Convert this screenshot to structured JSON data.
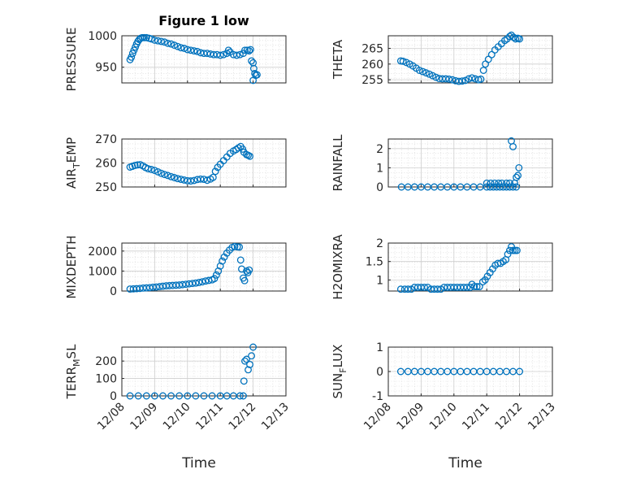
{
  "figure": {
    "title": "Figure 1 low"
  },
  "colors": {
    "marker": "#0072BD"
  },
  "chart_data": [
    {
      "type": "scatter",
      "id": "pressure",
      "title": "Figure 1 low",
      "xlabel": "",
      "ylabel": "PRESSURE",
      "ylim": [
        925,
        1000
      ],
      "yticks": [
        950,
        1000
      ],
      "yticklabels": [
        "950",
        "1000"
      ],
      "xlim": [
        0,
        5
      ],
      "points": [
        [
          0.25,
          962
        ],
        [
          0.29,
          966
        ],
        [
          0.33,
          972
        ],
        [
          0.37,
          977
        ],
        [
          0.41,
          982
        ],
        [
          0.45,
          987
        ],
        [
          0.49,
          991
        ],
        [
          0.53,
          994
        ],
        [
          0.57,
          996
        ],
        [
          0.62,
          997
        ],
        [
          0.68,
          997
        ],
        [
          0.75,
          997
        ],
        [
          0.83,
          996
        ],
        [
          0.9,
          995
        ],
        [
          1.0,
          993
        ],
        [
          1.1,
          992
        ],
        [
          1.2,
          991
        ],
        [
          1.3,
          990
        ],
        [
          1.4,
          988
        ],
        [
          1.5,
          987
        ],
        [
          1.6,
          985
        ],
        [
          1.7,
          983
        ],
        [
          1.8,
          981
        ],
        [
          1.9,
          980
        ],
        [
          2.0,
          978
        ],
        [
          2.1,
          977
        ],
        [
          2.2,
          976
        ],
        [
          2.3,
          975
        ],
        [
          2.4,
          973
        ],
        [
          2.5,
          972
        ],
        [
          2.6,
          972
        ],
        [
          2.7,
          971
        ],
        [
          2.8,
          970
        ],
        [
          2.9,
          970
        ],
        [
          3.0,
          969
        ],
        [
          3.1,
          970
        ],
        [
          3.2,
          972
        ],
        [
          3.25,
          977
        ],
        [
          3.3,
          974
        ],
        [
          3.4,
          970
        ],
        [
          3.5,
          969
        ],
        [
          3.6,
          970
        ],
        [
          3.7,
          972
        ],
        [
          3.75,
          977
        ],
        [
          3.82,
          977
        ],
        [
          3.88,
          976
        ],
        [
          3.92,
          978
        ],
        [
          3.95,
          960
        ],
        [
          4.0,
          957
        ],
        [
          4.02,
          948
        ],
        [
          4.05,
          940
        ],
        [
          4.0,
          929
        ],
        [
          4.08,
          937
        ],
        [
          4.12,
          938
        ]
      ]
    },
    {
      "type": "scatter",
      "id": "theta",
      "xlabel": "",
      "ylabel": "THETA",
      "ylim": [
        254,
        269
      ],
      "yticks": [
        255,
        260,
        265
      ],
      "yticklabels": [
        "255",
        "260",
        "265"
      ],
      "xlim": [
        0,
        5
      ],
      "points": [
        [
          0.38,
          261
        ],
        [
          0.45,
          260.9
        ],
        [
          0.55,
          260.5
        ],
        [
          0.65,
          260
        ],
        [
          0.75,
          259.4
        ],
        [
          0.85,
          258.7
        ],
        [
          0.95,
          258
        ],
        [
          1.05,
          257.6
        ],
        [
          1.15,
          257.2
        ],
        [
          1.25,
          256.8
        ],
        [
          1.35,
          256.3
        ],
        [
          1.45,
          255.8
        ],
        [
          1.55,
          255.4
        ],
        [
          1.65,
          255.3
        ],
        [
          1.75,
          255.3
        ],
        [
          1.85,
          255.2
        ],
        [
          1.95,
          255.0
        ],
        [
          2.05,
          254.7
        ],
        [
          2.15,
          254.5
        ],
        [
          2.25,
          254.6
        ],
        [
          2.35,
          254.8
        ],
        [
          2.45,
          255.3
        ],
        [
          2.55,
          255.6
        ],
        [
          2.65,
          255.3
        ],
        [
          2.75,
          255.0
        ],
        [
          2.82,
          255.2
        ],
        [
          2.9,
          258
        ],
        [
          2.96,
          260
        ],
        [
          3.05,
          261.5
        ],
        [
          3.15,
          263
        ],
        [
          3.25,
          264.5
        ],
        [
          3.35,
          265.5
        ],
        [
          3.45,
          266.5
        ],
        [
          3.55,
          267.5
        ],
        [
          3.62,
          268
        ],
        [
          3.7,
          268.8
        ],
        [
          3.75,
          269.2
        ],
        [
          3.82,
          268.5
        ],
        [
          3.88,
          268
        ],
        [
          3.95,
          268.2
        ],
        [
          4.0,
          268
        ]
      ]
    },
    {
      "type": "scatter",
      "id": "air_temp",
      "xlabel": "",
      "ylabel": "AIR_TEMP",
      "ylabel_base": "AIR",
      "ylabel_sub": "T",
      "ylabel_rest": "EMP",
      "ylim": [
        250,
        270
      ],
      "yticks": [
        250,
        260,
        270
      ],
      "yticklabels": [
        "250",
        "260",
        "270"
      ],
      "xlim": [
        0,
        5
      ],
      "points": [
        [
          0.25,
          258.3
        ],
        [
          0.32,
          258.6
        ],
        [
          0.4,
          259
        ],
        [
          0.48,
          259.2
        ],
        [
          0.56,
          259.3
        ],
        [
          0.64,
          258.8
        ],
        [
          0.72,
          258.1
        ],
        [
          0.8,
          257.6
        ],
        [
          0.9,
          257.3
        ],
        [
          1.0,
          256.9
        ],
        [
          1.1,
          256.3
        ],
        [
          1.2,
          255.7
        ],
        [
          1.3,
          255.2
        ],
        [
          1.4,
          254.8
        ],
        [
          1.5,
          254.3
        ],
        [
          1.6,
          253.9
        ],
        [
          1.7,
          253.5
        ],
        [
          1.8,
          253.2
        ],
        [
          1.9,
          252.9
        ],
        [
          2.0,
          252.6
        ],
        [
          2.1,
          252.5
        ],
        [
          2.2,
          252.7
        ],
        [
          2.3,
          253.1
        ],
        [
          2.4,
          253.3
        ],
        [
          2.5,
          253.2
        ],
        [
          2.6,
          252.8
        ],
        [
          2.7,
          253.3
        ],
        [
          2.78,
          254
        ],
        [
          2.85,
          256.5
        ],
        [
          2.92,
          258.2
        ],
        [
          3.0,
          259.5
        ],
        [
          3.1,
          261
        ],
        [
          3.2,
          262.5
        ],
        [
          3.3,
          264
        ],
        [
          3.4,
          265
        ],
        [
          3.48,
          265.6
        ],
        [
          3.55,
          266.3
        ],
        [
          3.62,
          266.9
        ],
        [
          3.68,
          265.8
        ],
        [
          3.72,
          264.5
        ],
        [
          3.8,
          263.5
        ],
        [
          3.85,
          263.2
        ],
        [
          3.9,
          262.8
        ]
      ]
    },
    {
      "type": "scatter",
      "id": "rainfall",
      "xlabel": "",
      "ylabel": "RAINFALL",
      "ylim": [
        0,
        2.5
      ],
      "yticks": [
        0,
        1,
        2
      ],
      "yticklabels": [
        "0",
        "1",
        "2"
      ],
      "xlim": [
        0,
        5
      ],
      "points": [
        [
          0.4,
          0
        ],
        [
          0.6,
          0
        ],
        [
          0.8,
          0
        ],
        [
          1.0,
          0
        ],
        [
          1.2,
          0
        ],
        [
          1.4,
          0
        ],
        [
          1.6,
          0
        ],
        [
          1.8,
          0
        ],
        [
          2.0,
          0
        ],
        [
          2.2,
          0
        ],
        [
          2.4,
          0
        ],
        [
          2.6,
          0
        ],
        [
          2.8,
          0
        ],
        [
          3.0,
          0
        ],
        [
          3.1,
          0
        ],
        [
          3.2,
          0
        ],
        [
          3.3,
          0
        ],
        [
          3.4,
          0
        ],
        [
          3.5,
          0
        ],
        [
          3.6,
          0
        ],
        [
          3.7,
          0
        ],
        [
          3.8,
          0
        ],
        [
          3.9,
          0
        ],
        [
          3.0,
          0.2
        ],
        [
          3.12,
          0.2
        ],
        [
          3.24,
          0.2
        ],
        [
          3.36,
          0.2
        ],
        [
          3.46,
          0.2
        ],
        [
          3.6,
          0.2
        ],
        [
          3.7,
          0.2
        ],
        [
          3.75,
          2.4
        ],
        [
          3.8,
          2.1
        ],
        [
          3.85,
          0.2
        ],
        [
          3.9,
          0.5
        ],
        [
          3.95,
          0.6
        ],
        [
          3.98,
          1.0
        ]
      ]
    },
    {
      "type": "scatter",
      "id": "mixdepth",
      "xlabel": "",
      "ylabel": "MIXDEPTH",
      "ylim": [
        0,
        2400
      ],
      "yticks": [
        0,
        1000,
        2000
      ],
      "yticklabels": [
        "0",
        "1000",
        "2000"
      ],
      "xlim": [
        0,
        5
      ],
      "points": [
        [
          0.25,
          100
        ],
        [
          0.35,
          110
        ],
        [
          0.45,
          120
        ],
        [
          0.55,
          130
        ],
        [
          0.65,
          150
        ],
        [
          0.75,
          160
        ],
        [
          0.85,
          170
        ],
        [
          0.95,
          190
        ],
        [
          1.05,
          200
        ],
        [
          1.15,
          220
        ],
        [
          1.25,
          240
        ],
        [
          1.35,
          260
        ],
        [
          1.45,
          270
        ],
        [
          1.55,
          280
        ],
        [
          1.65,
          290
        ],
        [
          1.75,
          300
        ],
        [
          1.85,
          320
        ],
        [
          1.95,
          340
        ],
        [
          2.05,
          360
        ],
        [
          2.15,
          380
        ],
        [
          2.25,
          400
        ],
        [
          2.35,
          430
        ],
        [
          2.45,
          460
        ],
        [
          2.55,
          500
        ],
        [
          2.65,
          530
        ],
        [
          2.75,
          560
        ],
        [
          2.82,
          620
        ],
        [
          2.88,
          800
        ],
        [
          2.94,
          1000
        ],
        [
          3.0,
          1250
        ],
        [
          3.06,
          1500
        ],
        [
          3.12,
          1700
        ],
        [
          3.2,
          1900
        ],
        [
          3.28,
          2050
        ],
        [
          3.36,
          2180
        ],
        [
          3.44,
          2230
        ],
        [
          3.52,
          2210
        ],
        [
          3.58,
          2200
        ],
        [
          3.62,
          1550
        ],
        [
          3.65,
          1100
        ],
        [
          3.7,
          650
        ],
        [
          3.74,
          520
        ],
        [
          3.8,
          1000
        ],
        [
          3.84,
          920
        ],
        [
          3.88,
          1050
        ]
      ]
    },
    {
      "type": "scatter",
      "id": "h2omixra",
      "xlabel": "",
      "ylabel": "H2OMIXRA",
      "ylim": [
        0.7,
        2.0
      ],
      "yticks": [
        1,
        1.5,
        2
      ],
      "yticklabels": [
        "1",
        "1.5",
        "2"
      ],
      "xlim": [
        0,
        5
      ],
      "points": [
        [
          0.38,
          0.75
        ],
        [
          0.5,
          0.75
        ],
        [
          0.6,
          0.75
        ],
        [
          0.7,
          0.75
        ],
        [
          0.8,
          0.8
        ],
        [
          0.9,
          0.8
        ],
        [
          1.0,
          0.8
        ],
        [
          1.1,
          0.8
        ],
        [
          1.2,
          0.8
        ],
        [
          1.3,
          0.75
        ],
        [
          1.4,
          0.75
        ],
        [
          1.5,
          0.75
        ],
        [
          1.6,
          0.75
        ],
        [
          1.7,
          0.8
        ],
        [
          1.8,
          0.8
        ],
        [
          1.9,
          0.8
        ],
        [
          2.0,
          0.8
        ],
        [
          2.1,
          0.8
        ],
        [
          2.2,
          0.8
        ],
        [
          2.3,
          0.8
        ],
        [
          2.4,
          0.8
        ],
        [
          2.5,
          0.8
        ],
        [
          2.55,
          0.88
        ],
        [
          2.62,
          0.82
        ],
        [
          2.7,
          0.82
        ],
        [
          2.78,
          0.82
        ],
        [
          2.88,
          0.95
        ],
        [
          2.95,
          1.0
        ],
        [
          3.02,
          1.1
        ],
        [
          3.1,
          1.2
        ],
        [
          3.18,
          1.3
        ],
        [
          3.26,
          1.4
        ],
        [
          3.34,
          1.45
        ],
        [
          3.42,
          1.45
        ],
        [
          3.5,
          1.5
        ],
        [
          3.58,
          1.55
        ],
        [
          3.64,
          1.7
        ],
        [
          3.7,
          1.8
        ],
        [
          3.75,
          1.9
        ],
        [
          3.8,
          1.8
        ],
        [
          3.86,
          1.8
        ],
        [
          3.92,
          1.8
        ]
      ]
    },
    {
      "type": "scatter",
      "id": "terr_msl",
      "xlabel": "Time",
      "ylabel": "TERR_MSL",
      "ylabel_base": "TERR",
      "ylabel_sub": "M",
      "ylabel_rest": "SL",
      "ylim": [
        0,
        280
      ],
      "yticks": [
        0,
        100,
        200
      ],
      "yticklabels": [
        "0",
        "100",
        "200"
      ],
      "xlim": [
        0,
        5
      ],
      "xticks": [
        0,
        1,
        2,
        3,
        4,
        5
      ],
      "xticklabels": [
        "12/08",
        "12/09",
        "12/10",
        "12/11",
        "12/12",
        "12/13"
      ],
      "points": [
        [
          0.25,
          0
        ],
        [
          0.5,
          0
        ],
        [
          0.75,
          0
        ],
        [
          1.0,
          0
        ],
        [
          1.25,
          0
        ],
        [
          1.5,
          0
        ],
        [
          1.75,
          0
        ],
        [
          2.0,
          0
        ],
        [
          2.25,
          0
        ],
        [
          2.5,
          0
        ],
        [
          2.75,
          0
        ],
        [
          3.0,
          0
        ],
        [
          3.2,
          0
        ],
        [
          3.4,
          0
        ],
        [
          3.6,
          0
        ],
        [
          3.7,
          0
        ],
        [
          3.72,
          85
        ],
        [
          3.75,
          200
        ],
        [
          3.8,
          210
        ],
        [
          3.85,
          150
        ],
        [
          3.9,
          180
        ],
        [
          3.95,
          230
        ],
        [
          4.0,
          280
        ]
      ]
    },
    {
      "type": "scatter",
      "id": "sun_flux",
      "xlabel": "Time",
      "ylabel": "SUN_FLUX",
      "ylabel_base": "SUN",
      "ylabel_sub": "F",
      "ylabel_rest": "LUX",
      "ylim": [
        -1,
        1
      ],
      "yticks": [
        -1,
        0,
        1
      ],
      "yticklabels": [
        "-1",
        "0",
        "1"
      ],
      "xlim": [
        0,
        5
      ],
      "xticks": [
        0,
        1,
        2,
        3,
        4,
        5
      ],
      "xticklabels": [
        "12/08",
        "12/09",
        "12/10",
        "12/11",
        "12/12",
        "12/13"
      ],
      "points": [
        [
          0.38,
          0
        ],
        [
          0.6,
          0
        ],
        [
          0.8,
          0
        ],
        [
          1.0,
          0
        ],
        [
          1.2,
          0
        ],
        [
          1.4,
          0
        ],
        [
          1.6,
          0
        ],
        [
          1.8,
          0
        ],
        [
          2.0,
          0
        ],
        [
          2.2,
          0
        ],
        [
          2.4,
          0
        ],
        [
          2.6,
          0
        ],
        [
          2.8,
          0
        ],
        [
          3.0,
          0
        ],
        [
          3.2,
          0
        ],
        [
          3.4,
          0
        ],
        [
          3.6,
          0
        ],
        [
          3.8,
          0
        ],
        [
          4.0,
          0
        ]
      ]
    }
  ]
}
